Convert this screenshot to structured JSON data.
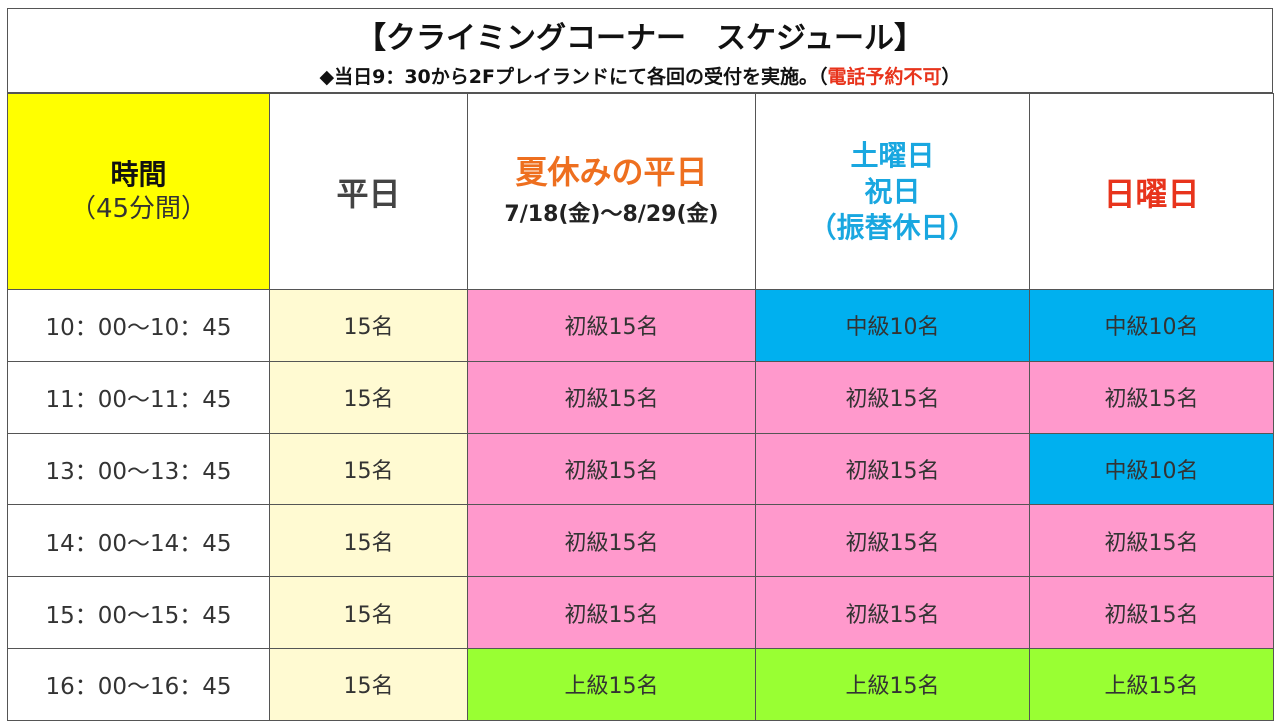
{
  "title": {
    "main": "【クライミングコーナー　スケジュール】",
    "sub_prefix": "◆当日9：30から2Fプレイランドにて各回の受付を実施。（",
    "sub_red": "電話予約不可",
    "sub_suffix": "）"
  },
  "headers": {
    "time_line1": "時間",
    "time_line2": "（45分間）",
    "weekday": "平日",
    "summer_line1": "夏休みの平日",
    "summer_line2": "7/18(金)～8/29(金)",
    "sat_line1": "土曜日",
    "sat_line2": "祝日",
    "sat_line3": "（振替休日）",
    "sunday": "日曜日"
  },
  "colors": {
    "time_header": "#ffff00",
    "weekday_cells": "#fffad2",
    "beginner": "#ff99cc",
    "intermediate": "#00b0ef",
    "advanced": "#99ff33",
    "summer_header_text": "#ee6f1f",
    "saturday_header_text": "#19a7e0",
    "sunday_header_text": "#e8341c"
  },
  "rows": [
    {
      "time": "10：00～10：45",
      "weekday": "15名",
      "summer": "初級15名",
      "saturday": "中級10名",
      "sunday": "中級10名"
    },
    {
      "time": "11：00～11：45",
      "weekday": "15名",
      "summer": "初級15名",
      "saturday": "初級15名",
      "sunday": "初級15名"
    },
    {
      "time": "13：00～13：45",
      "weekday": "15名",
      "summer": "初級15名",
      "saturday": "初級15名",
      "sunday": "中級10名"
    },
    {
      "time": "14：00～14：45",
      "weekday": "15名",
      "summer": "初級15名",
      "saturday": "初級15名",
      "sunday": "初級15名"
    },
    {
      "time": "15：00～15：45",
      "weekday": "15名",
      "summer": "初級15名",
      "saturday": "初級15名",
      "sunday": "初級15名"
    },
    {
      "time": "16：00～16：45",
      "weekday": "15名",
      "summer": "上級15名",
      "saturday": "上級15名",
      "sunday": "上級15名"
    }
  ]
}
